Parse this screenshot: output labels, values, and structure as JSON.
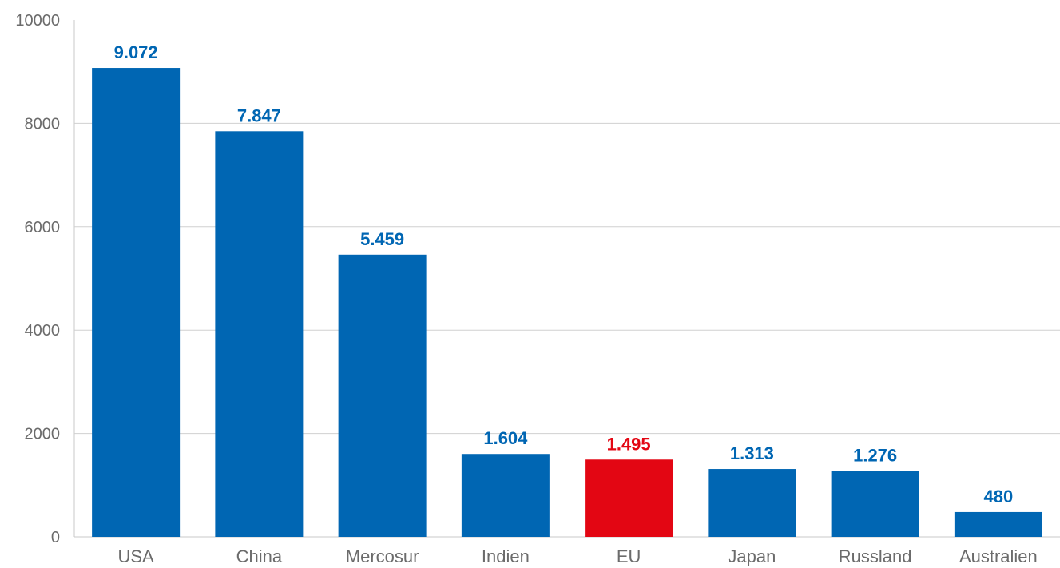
{
  "chart_data": {
    "type": "bar",
    "title": "",
    "xlabel": "",
    "ylabel": "",
    "ylim": [
      0,
      10000
    ],
    "y_ticks": [
      0,
      2000,
      4000,
      6000,
      8000,
      10000
    ],
    "y_tick_labels": [
      "0",
      "2000",
      "4000",
      "6000",
      "8000",
      "10000"
    ],
    "grid": true,
    "legend": "none",
    "categories": [
      "USA",
      "China",
      "Mercosur",
      "Indien",
      "EU",
      "Japan",
      "Russland",
      "Australien"
    ],
    "values": [
      9072,
      7847,
      5459,
      1604,
      1495,
      1313,
      1276,
      480
    ],
    "value_labels": [
      "9.072",
      "7.847",
      "5.459",
      "1.604",
      "1.495",
      "1.313",
      "1.276",
      "480"
    ],
    "highlight_category": "EU",
    "colors": {
      "default_bar": "#0066b3",
      "highlight_bar": "#e30613",
      "grid": "#d0d0d0",
      "axis_text": "#6b6b6b"
    }
  }
}
